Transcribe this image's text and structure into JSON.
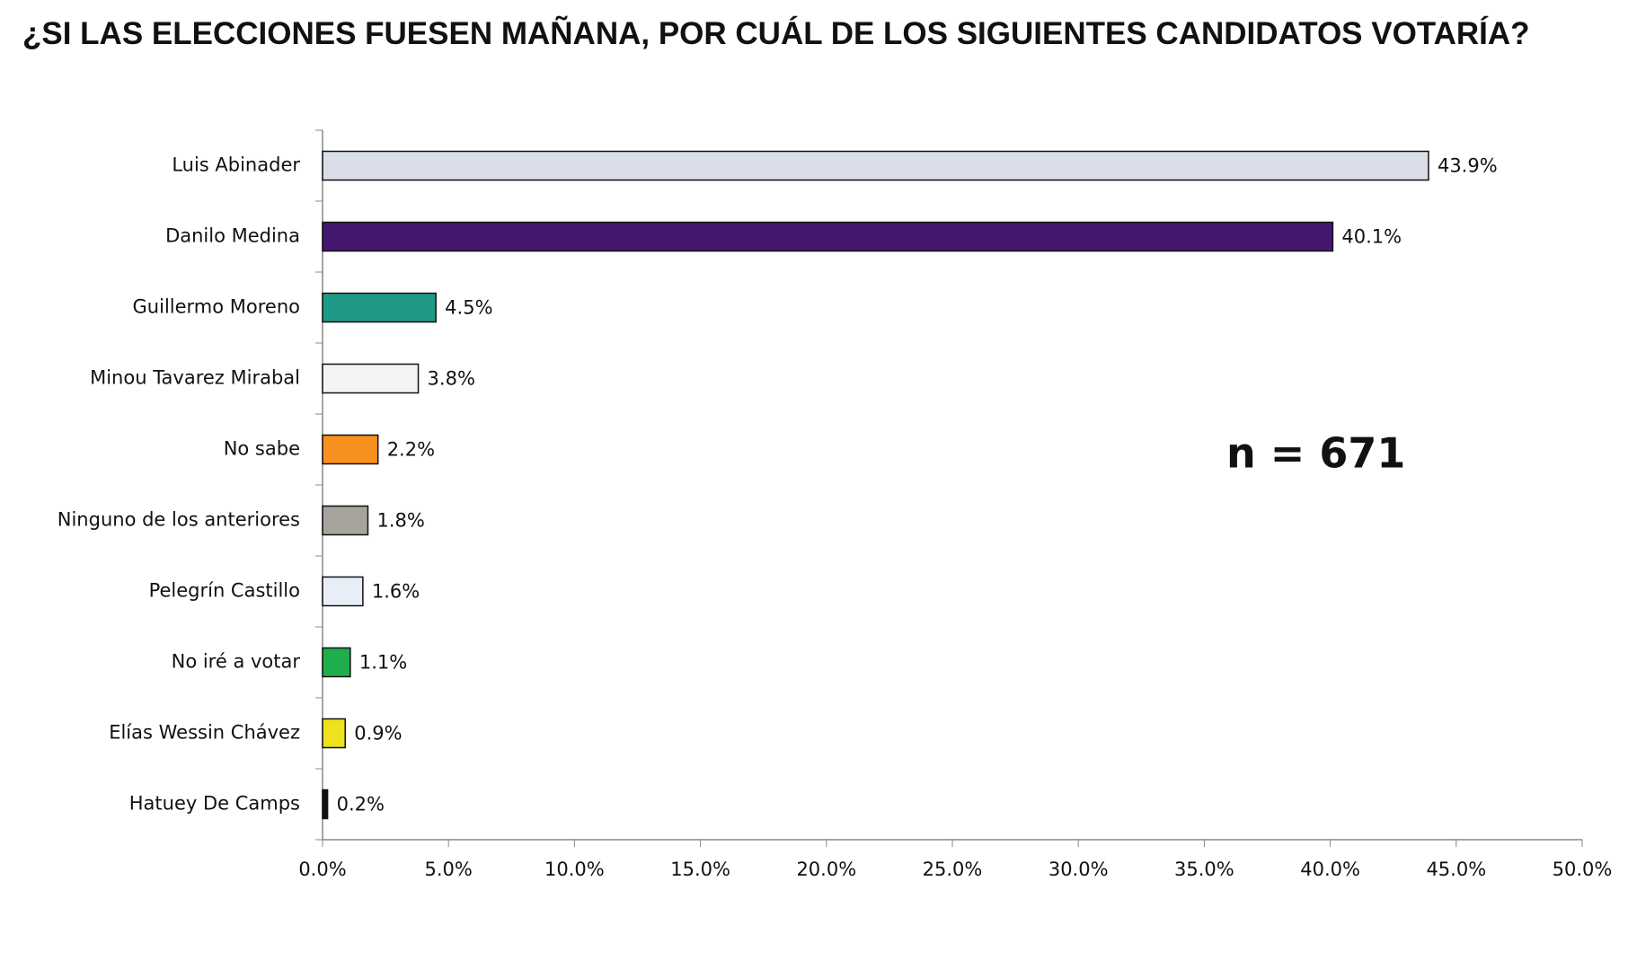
{
  "chart_data": {
    "type": "bar",
    "orientation": "horizontal",
    "title": "¿SI LAS ELECCIONES FUESEN MAÑANA, POR CUÁL DE LOS SIGUIENTES CANDIDATOS VOTARÍA?",
    "annotation": "n = 671",
    "categories": [
      "Luis Abinader",
      "Danilo Medina",
      "Guillermo Moreno",
      "Minou Tavarez Mirabal",
      "No sabe",
      "Ninguno de los anteriores",
      "Pelegrín Castillo",
      "No iré a votar",
      "Elías Wessin Chávez",
      "Hatuey De Camps"
    ],
    "values": [
      43.9,
      40.1,
      4.5,
      3.8,
      2.2,
      1.8,
      1.6,
      1.1,
      0.9,
      0.2
    ],
    "value_labels": [
      "43.9%",
      "40.1%",
      "4.5%",
      "3.8%",
      "2.2%",
      "1.8%",
      "1.6%",
      "1.1%",
      "0.9%",
      "0.2%"
    ],
    "colors": [
      "#d9dee8",
      "#43186e",
      "#1e9a86",
      "#f4f4f4",
      "#f7901e",
      "#a7a39d",
      "#e8eef8",
      "#1fae4b",
      "#efe11d",
      "#111111"
    ],
    "xlim": [
      0,
      50
    ],
    "xticks": [
      {
        "value": 0,
        "label": "0.0%"
      },
      {
        "value": 5,
        "label": "5.0%"
      },
      {
        "value": 10,
        "label": "10.0%"
      },
      {
        "value": 15,
        "label": "15.0%"
      },
      {
        "value": 20,
        "label": "20.0%"
      },
      {
        "value": 25,
        "label": "25.0%"
      },
      {
        "value": 30,
        "label": "30.0%"
      },
      {
        "value": 35,
        "label": "35.0%"
      },
      {
        "value": 40,
        "label": "40.0%"
      },
      {
        "value": 45,
        "label": "45.0%"
      },
      {
        "value": 50,
        "label": "50.0%"
      }
    ],
    "grid": false
  }
}
